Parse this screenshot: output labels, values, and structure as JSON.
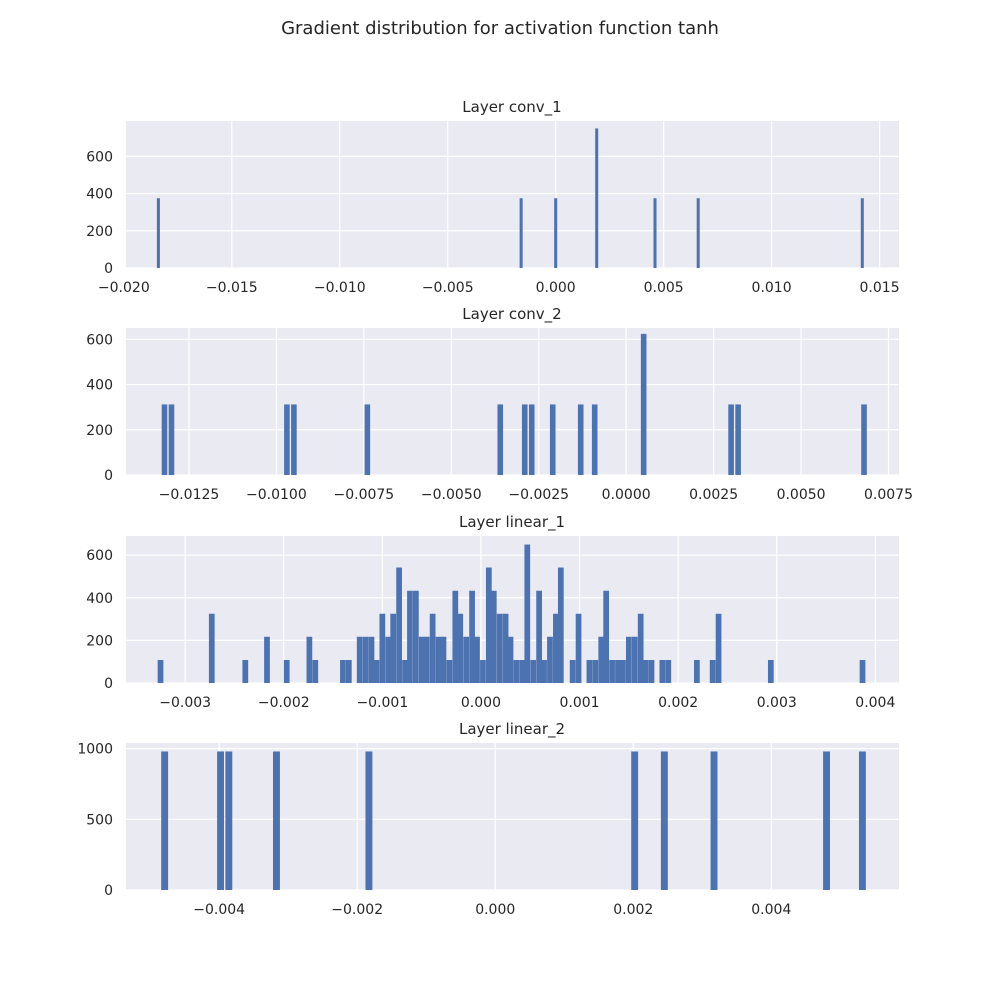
{
  "suptitle": "Gradient distribution for activation function tanh",
  "chart_data": [
    {
      "type": "bar",
      "title": "Layer conv_1",
      "xlim": [
        -0.0199,
        0.0159
      ],
      "ylim": [
        0,
        790
      ],
      "xticks": [
        -0.02,
        -0.015,
        -0.01,
        -0.005,
        0.0,
        0.005,
        0.01,
        0.015
      ],
      "xtick_labels": [
        "−0.020",
        "−0.015",
        "−0.010",
        "−0.005",
        "0.000",
        "0.005",
        "0.010",
        "0.015"
      ],
      "yticks": [
        0,
        200,
        400,
        600
      ],
      "ytick_labels": [
        "0",
        "200",
        "400",
        "600"
      ],
      "bar_width": 0.00014,
      "x": [
        -0.0184,
        -0.0016,
        0.0,
        0.0019,
        0.0046,
        0.0066,
        0.0142
      ],
      "values": [
        375,
        375,
        375,
        750,
        375,
        375,
        375
      ]
    },
    {
      "type": "bar",
      "title": "Layer conv_2",
      "xlim": [
        -0.0143,
        0.0078
      ],
      "ylim": [
        0,
        650
      ],
      "xticks": [
        -0.0125,
        -0.01,
        -0.0075,
        -0.005,
        -0.0025,
        0.0,
        0.0025,
        0.005,
        0.0075
      ],
      "xtick_labels": [
        "−0.0125",
        "−0.0100",
        "−0.0075",
        "−0.0050",
        "−0.0025",
        "0.0000",
        "0.0025",
        "0.0050",
        "0.0075"
      ],
      "yticks": [
        0,
        200,
        400,
        600
      ],
      "ytick_labels": [
        "0",
        "200",
        "400",
        "600"
      ],
      "bar_width": 0.00016,
      "x": [
        -0.0132,
        -0.013,
        -0.0097,
        -0.0095,
        -0.0074,
        -0.0036,
        -0.0029,
        -0.0027,
        -0.0021,
        -0.0013,
        -0.0009,
        0.0005,
        0.003,
        0.0032,
        0.0068
      ],
      "values": [
        312,
        312,
        312,
        312,
        312,
        312,
        312,
        312,
        312,
        312,
        312,
        624,
        312,
        312,
        312
      ]
    },
    {
      "type": "bar",
      "title": "Layer linear_1",
      "xlim": [
        -0.0036,
        0.00424
      ],
      "ylim": [
        0,
        690
      ],
      "xticks": [
        -0.003,
        -0.002,
        -0.001,
        0.0,
        0.001,
        0.002,
        0.003,
        0.004
      ],
      "xtick_labels": [
        "−0.003",
        "−0.002",
        "−0.001",
        "0.000",
        "0.001",
        "0.002",
        "0.003",
        "0.004"
      ],
      "yticks": [
        0,
        200,
        400,
        600
      ],
      "ytick_labels": [
        "0",
        "200",
        "400",
        "600"
      ],
      "bar_width": 5.8e-05,
      "x": [
        -0.00325,
        -0.00273,
        -0.00239,
        -0.00217,
        -0.00197,
        -0.00174,
        -0.00168,
        -0.0014,
        -0.00134,
        -0.00123,
        -0.00117,
        -0.00111,
        -0.00106,
        -0.001,
        -0.00094,
        -0.00089,
        -0.00083,
        -0.00077,
        -0.00072,
        -0.00066,
        -0.0006,
        -0.00055,
        -0.00049,
        -0.00043,
        -0.00038,
        -0.00032,
        -0.00026,
        -0.00021,
        -0.00015,
        -9e-05,
        -4e-05,
        2e-05,
        8e-05,
        0.00013,
        0.00019,
        0.00025,
        0.0003,
        0.00036,
        0.00042,
        0.00047,
        0.00053,
        0.00059,
        0.00064,
        0.0007,
        0.00076,
        0.00081,
        0.00093,
        0.00099,
        0.0011,
        0.00116,
        0.00122,
        0.00127,
        0.00133,
        0.00139,
        0.00144,
        0.0015,
        0.00156,
        0.00162,
        0.00167,
        0.00173,
        0.00184,
        0.0019,
        0.00219,
        0.00235,
        0.00241,
        0.00294,
        0.00387
      ],
      "values": [
        108,
        325,
        108,
        217,
        108,
        217,
        108,
        108,
        108,
        217,
        217,
        217,
        108,
        325,
        217,
        325,
        542,
        108,
        433,
        433,
        217,
        217,
        325,
        217,
        217,
        108,
        433,
        325,
        217,
        433,
        217,
        108,
        542,
        433,
        325,
        325,
        217,
        108,
        108,
        650,
        108,
        433,
        108,
        217,
        325,
        542,
        108,
        325,
        108,
        108,
        217,
        433,
        108,
        108,
        108,
        217,
        217,
        325,
        108,
        108,
        108,
        108,
        108,
        108,
        325,
        108,
        108
      ]
    },
    {
      "type": "bar",
      "title": "Layer linear_2",
      "xlim": [
        -0.00535,
        0.00585
      ],
      "ylim": [
        0,
        1040
      ],
      "xticks": [
        -0.004,
        -0.002,
        0.0,
        0.002,
        0.004
      ],
      "xtick_labels": [
        "−0.004",
        "−0.002",
        "0.000",
        "0.002",
        "0.004"
      ],
      "yticks": [
        0,
        500,
        1000
      ],
      "ytick_labels": [
        "0",
        "500",
        "1000"
      ],
      "bar_width": 0.0001,
      "x": [
        -0.00479,
        -0.00398,
        -0.00386,
        -0.00317,
        -0.00183,
        0.00202,
        0.00245,
        0.00317,
        0.0048,
        0.00532
      ],
      "values": [
        980,
        980,
        980,
        980,
        980,
        980,
        980,
        980,
        980,
        980
      ]
    }
  ]
}
